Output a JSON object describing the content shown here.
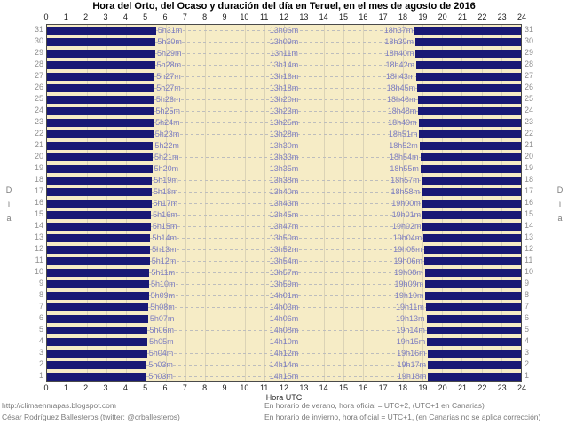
{
  "title": "Hora del Orto, del Ocaso y duración del día en Teruel, en el mes de agosto de 2016",
  "axis": {
    "x_label": "Hora UTC",
    "y_label": "Día"
  },
  "footer": {
    "left_line1": "http://climaenmapas.blogspot.com",
    "left_line2": "César Rodríguez Ballesteros (twitter: @crballesteros)",
    "right_line1": "En horario de verano, hora oficial = UTC+2, (UTC+1 en Canarias)",
    "right_line2": "En horario de invierno, hora oficial = UTC+1, (en Canarias no se aplica corrección)"
  },
  "colors": {
    "plot_background": "#F6ECC6",
    "night_bar": "#191975",
    "time_label": "#7E7EC0",
    "grid_line": "#DBD3B6",
    "day_number": "#8f8f8f",
    "footer_text": "#7a7a7a"
  },
  "chart_data": {
    "type": "bar",
    "subtype": "horizontal-day-length-spans",
    "title": "Hora del Orto, del Ocaso y duración del día en Teruel, en el mes de agosto de 2016",
    "xlabel": "Hora UTC",
    "ylabel": "Día",
    "xlim": [
      0,
      24
    ],
    "x_ticks": [
      0,
      1,
      2,
      3,
      4,
      5,
      6,
      7,
      8,
      9,
      10,
      11,
      12,
      13,
      14,
      15,
      16,
      17,
      18,
      19,
      20,
      21,
      22,
      23,
      24
    ],
    "grid": true,
    "legend": false,
    "bars_meaning": "dark navy bars = night (00:00→orto and ocaso→24:00); beige gap = daylight",
    "days": [
      {
        "day": 31,
        "orto": "5h31m",
        "duracion": "13h06m",
        "ocaso": "18h37m"
      },
      {
        "day": 30,
        "orto": "5h30m",
        "duracion": "13h09m",
        "ocaso": "18h39m"
      },
      {
        "day": 29,
        "orto": "5h29m",
        "duracion": "13h11m",
        "ocaso": "18h40m"
      },
      {
        "day": 28,
        "orto": "5h28m",
        "duracion": "13h14m",
        "ocaso": "18h42m"
      },
      {
        "day": 27,
        "orto": "5h27m",
        "duracion": "13h16m",
        "ocaso": "18h43m"
      },
      {
        "day": 26,
        "orto": "5h27m",
        "duracion": "13h18m",
        "ocaso": "18h45m"
      },
      {
        "day": 25,
        "orto": "5h26m",
        "duracion": "13h20m",
        "ocaso": "18h46m"
      },
      {
        "day": 24,
        "orto": "5h25m",
        "duracion": "13h23m",
        "ocaso": "18h48m"
      },
      {
        "day": 23,
        "orto": "5h24m",
        "duracion": "13h25m",
        "ocaso": "18h49m"
      },
      {
        "day": 22,
        "orto": "5h23m",
        "duracion": "13h28m",
        "ocaso": "18h51m"
      },
      {
        "day": 21,
        "orto": "5h22m",
        "duracion": "13h30m",
        "ocaso": "18h52m"
      },
      {
        "day": 20,
        "orto": "5h21m",
        "duracion": "13h33m",
        "ocaso": "18h54m"
      },
      {
        "day": 19,
        "orto": "5h20m",
        "duracion": "13h35m",
        "ocaso": "18h55m"
      },
      {
        "day": 18,
        "orto": "5h19m",
        "duracion": "13h38m",
        "ocaso": "18h57m"
      },
      {
        "day": 17,
        "orto": "5h18m",
        "duracion": "13h40m",
        "ocaso": "18h58m"
      },
      {
        "day": 16,
        "orto": "5h17m",
        "duracion": "13h43m",
        "ocaso": "19h00m"
      },
      {
        "day": 15,
        "orto": "5h16m",
        "duracion": "13h45m",
        "ocaso": "19h01m"
      },
      {
        "day": 14,
        "orto": "5h15m",
        "duracion": "13h47m",
        "ocaso": "19h02m"
      },
      {
        "day": 13,
        "orto": "5h14m",
        "duracion": "13h50m",
        "ocaso": "19h04m"
      },
      {
        "day": 12,
        "orto": "5h13m",
        "duracion": "13h52m",
        "ocaso": "19h05m"
      },
      {
        "day": 11,
        "orto": "5h12m",
        "duracion": "13h54m",
        "ocaso": "19h06m"
      },
      {
        "day": 10,
        "orto": "5h11m",
        "duracion": "13h57m",
        "ocaso": "19h08m"
      },
      {
        "day": 9,
        "orto": "5h10m",
        "duracion": "13h59m",
        "ocaso": "19h09m"
      },
      {
        "day": 8,
        "orto": "5h09m",
        "duracion": "14h01m",
        "ocaso": "19h10m"
      },
      {
        "day": 7,
        "orto": "5h08m",
        "duracion": "14h03m",
        "ocaso": "19h11m"
      },
      {
        "day": 6,
        "orto": "5h07m",
        "duracion": "14h06m",
        "ocaso": "19h13m"
      },
      {
        "day": 5,
        "orto": "5h06m",
        "duracion": "14h08m",
        "ocaso": "19h14m"
      },
      {
        "day": 4,
        "orto": "5h05m",
        "duracion": "14h10m",
        "ocaso": "19h15m"
      },
      {
        "day": 3,
        "orto": "5h04m",
        "duracion": "14h12m",
        "ocaso": "19h16m"
      },
      {
        "day": 2,
        "orto": "5h03m",
        "duracion": "14h14m",
        "ocaso": "19h17m"
      },
      {
        "day": 1,
        "orto": "5h03m",
        "duracion": "14h15m",
        "ocaso": "19h18m"
      }
    ]
  }
}
